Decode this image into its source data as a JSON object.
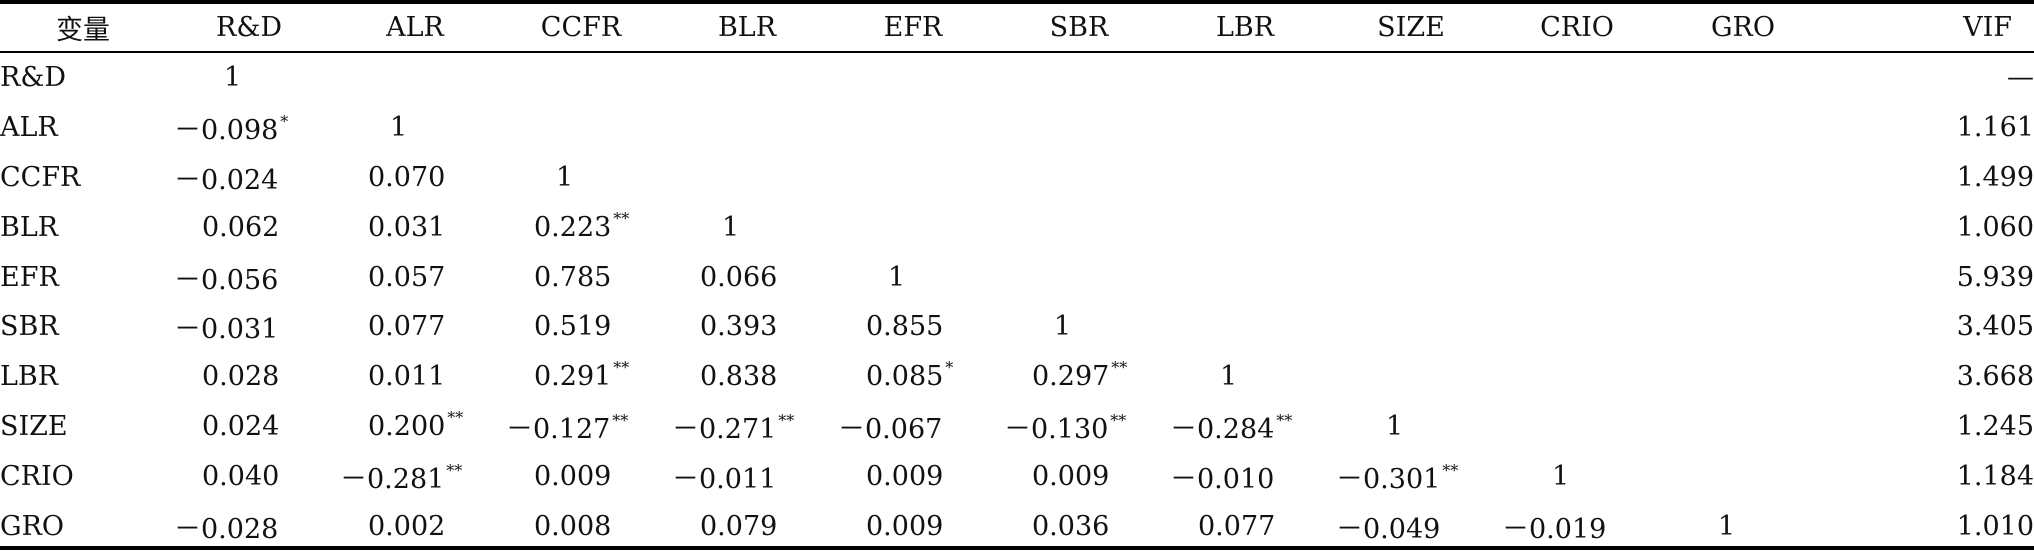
{
  "table": {
    "headers": [
      "变量",
      "R&D",
      "ALR",
      "CCFR",
      "BLR",
      "EFR",
      "SBR",
      "LBR",
      "SIZE",
      "CRIO",
      "GRO",
      "VIF"
    ],
    "rows": [
      {
        "label": "R&D",
        "cells": [
          {
            "v": "1",
            "s": ""
          },
          {
            "v": "",
            "s": ""
          },
          {
            "v": "",
            "s": ""
          },
          {
            "v": "",
            "s": ""
          },
          {
            "v": "",
            "s": ""
          },
          {
            "v": "",
            "s": ""
          },
          {
            "v": "",
            "s": ""
          },
          {
            "v": "",
            "s": ""
          },
          {
            "v": "",
            "s": ""
          },
          {
            "v": "",
            "s": ""
          }
        ],
        "vif": "—"
      },
      {
        "label": "ALR",
        "cells": [
          {
            "v": "－0.098",
            "s": "*"
          },
          {
            "v": "1",
            "s": ""
          },
          {
            "v": "",
            "s": ""
          },
          {
            "v": "",
            "s": ""
          },
          {
            "v": "",
            "s": ""
          },
          {
            "v": "",
            "s": ""
          },
          {
            "v": "",
            "s": ""
          },
          {
            "v": "",
            "s": ""
          },
          {
            "v": "",
            "s": ""
          },
          {
            "v": "",
            "s": ""
          }
        ],
        "vif": "1.161"
      },
      {
        "label": "CCFR",
        "cells": [
          {
            "v": "－0.024",
            "s": ""
          },
          {
            "v": "0.070",
            "s": ""
          },
          {
            "v": "1",
            "s": ""
          },
          {
            "v": "",
            "s": ""
          },
          {
            "v": "",
            "s": ""
          },
          {
            "v": "",
            "s": ""
          },
          {
            "v": "",
            "s": ""
          },
          {
            "v": "",
            "s": ""
          },
          {
            "v": "",
            "s": ""
          },
          {
            "v": "",
            "s": ""
          }
        ],
        "vif": "1.499"
      },
      {
        "label": "BLR",
        "cells": [
          {
            "v": "0.062",
            "s": ""
          },
          {
            "v": "0.031",
            "s": ""
          },
          {
            "v": "0.223",
            "s": "**"
          },
          {
            "v": "1",
            "s": ""
          },
          {
            "v": "",
            "s": ""
          },
          {
            "v": "",
            "s": ""
          },
          {
            "v": "",
            "s": ""
          },
          {
            "v": "",
            "s": ""
          },
          {
            "v": "",
            "s": ""
          },
          {
            "v": "",
            "s": ""
          }
        ],
        "vif": "1.060"
      },
      {
        "label": "EFR",
        "cells": [
          {
            "v": "－0.056",
            "s": ""
          },
          {
            "v": "0.057",
            "s": ""
          },
          {
            "v": "0.785",
            "s": ""
          },
          {
            "v": "0.066",
            "s": ""
          },
          {
            "v": "1",
            "s": ""
          },
          {
            "v": "",
            "s": ""
          },
          {
            "v": "",
            "s": ""
          },
          {
            "v": "",
            "s": ""
          },
          {
            "v": "",
            "s": ""
          },
          {
            "v": "",
            "s": ""
          }
        ],
        "vif": "5.939"
      },
      {
        "label": "SBR",
        "cells": [
          {
            "v": "－0.031",
            "s": ""
          },
          {
            "v": "0.077",
            "s": ""
          },
          {
            "v": "0.519",
            "s": ""
          },
          {
            "v": "0.393",
            "s": ""
          },
          {
            "v": "0.855",
            "s": ""
          },
          {
            "v": "1",
            "s": ""
          },
          {
            "v": "",
            "s": ""
          },
          {
            "v": "",
            "s": ""
          },
          {
            "v": "",
            "s": ""
          },
          {
            "v": "",
            "s": ""
          }
        ],
        "vif": "3.405"
      },
      {
        "label": "LBR",
        "cells": [
          {
            "v": "0.028",
            "s": ""
          },
          {
            "v": "0.011",
            "s": ""
          },
          {
            "v": "0.291",
            "s": "**"
          },
          {
            "v": "0.838",
            "s": ""
          },
          {
            "v": "0.085",
            "s": "*"
          },
          {
            "v": "0.297",
            "s": "**"
          },
          {
            "v": "1",
            "s": ""
          },
          {
            "v": "",
            "s": ""
          },
          {
            "v": "",
            "s": ""
          },
          {
            "v": "",
            "s": ""
          }
        ],
        "vif": "3.668"
      },
      {
        "label": "SIZE",
        "cells": [
          {
            "v": "0.024",
            "s": ""
          },
          {
            "v": "0.200",
            "s": "**"
          },
          {
            "v": "－0.127",
            "s": "**"
          },
          {
            "v": "－0.271",
            "s": "**"
          },
          {
            "v": "－0.067",
            "s": ""
          },
          {
            "v": "－0.130",
            "s": "**"
          },
          {
            "v": "－0.284",
            "s": "**"
          },
          {
            "v": "1",
            "s": ""
          },
          {
            "v": "",
            "s": ""
          },
          {
            "v": "",
            "s": ""
          }
        ],
        "vif": "1.245"
      },
      {
        "label": "CRIO",
        "cells": [
          {
            "v": "0.040",
            "s": ""
          },
          {
            "v": "－0.281",
            "s": "**"
          },
          {
            "v": "0.009",
            "s": ""
          },
          {
            "v": "－0.011",
            "s": ""
          },
          {
            "v": "0.009",
            "s": ""
          },
          {
            "v": "0.009",
            "s": ""
          },
          {
            "v": "－0.010",
            "s": ""
          },
          {
            "v": "－0.301",
            "s": "**"
          },
          {
            "v": "1",
            "s": ""
          },
          {
            "v": "",
            "s": ""
          }
        ],
        "vif": "1.184"
      },
      {
        "label": "GRO",
        "cells": [
          {
            "v": "－0.028",
            "s": ""
          },
          {
            "v": "0.002",
            "s": ""
          },
          {
            "v": "0.008",
            "s": ""
          },
          {
            "v": "0.079",
            "s": ""
          },
          {
            "v": "0.009",
            "s": ""
          },
          {
            "v": "0.036",
            "s": ""
          },
          {
            "v": "0.077",
            "s": ""
          },
          {
            "v": "－0.049",
            "s": ""
          },
          {
            "v": "－0.019",
            "s": ""
          },
          {
            "v": "1",
            "s": ""
          }
        ],
        "vif": "1.010"
      }
    ]
  }
}
